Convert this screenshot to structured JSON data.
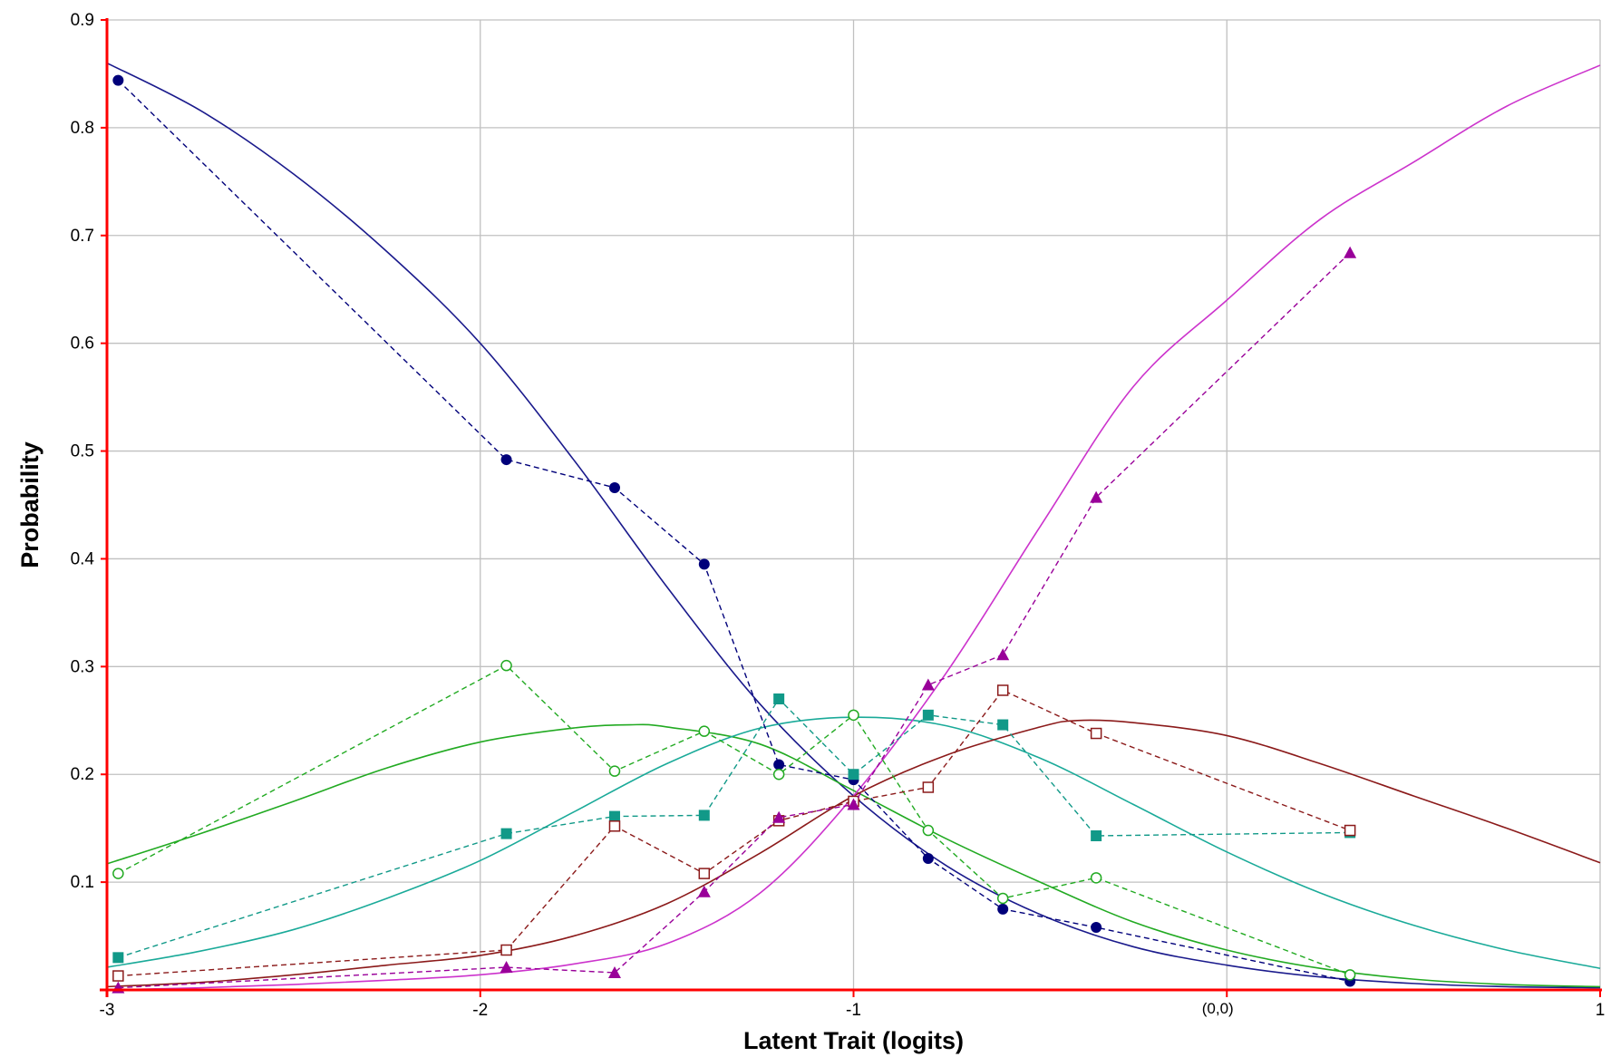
{
  "chart_data": {
    "type": "line",
    "title": "",
    "xlabel": "Latent Trait (logits)",
    "ylabel": "Probability",
    "xlim": [
      -3,
      1
    ],
    "ylim": [
      0,
      0.9
    ],
    "x_ticks": [
      {
        "value": -3,
        "label": "-3"
      },
      {
        "value": -2,
        "label": "-2"
      },
      {
        "value": -1,
        "label": "-1"
      },
      {
        "value": 1,
        "label": "1"
      }
    ],
    "y_ticks": [
      {
        "value": 0.1,
        "label": "0.1"
      },
      {
        "value": 0.2,
        "label": "0.2"
      },
      {
        "value": 0.3,
        "label": "0.3"
      },
      {
        "value": 0.4,
        "label": "0.4"
      },
      {
        "value": 0.5,
        "label": "0.5"
      },
      {
        "value": 0.6,
        "label": "0.6"
      },
      {
        "value": 0.7,
        "label": "0.7"
      },
      {
        "value": 0.8,
        "label": "0.8"
      },
      {
        "value": 0.9,
        "label": "0.9"
      }
    ],
    "origin_label": "(0,0)",
    "origin_x": 0,
    "grid": true,
    "axis_color": "#ff0000",
    "grid_color": "#c0c0c0",
    "model_curves": [
      {
        "id": "cat1",
        "color": "#1a1a8c",
        "points": [
          [
            -3,
            0.86
          ],
          [
            -2.75,
            0.816
          ],
          [
            -2.5,
            0.757
          ],
          [
            -2.25,
            0.685
          ],
          [
            -2,
            0.6
          ],
          [
            -1.75,
            0.492
          ],
          [
            -1.5,
            0.374
          ],
          [
            -1.25,
            0.265
          ],
          [
            -1,
            0.18
          ],
          [
            -0.75,
            0.115
          ],
          [
            -0.5,
            0.07
          ],
          [
            -0.25,
            0.04
          ],
          [
            0,
            0.023
          ],
          [
            0.25,
            0.012
          ],
          [
            0.5,
            0.006
          ],
          [
            0.75,
            0.003
          ],
          [
            1,
            0.002
          ]
        ]
      },
      {
        "id": "cat2",
        "color": "#22aa22",
        "points": [
          [
            -3,
            0.117
          ],
          [
            -2.75,
            0.145
          ],
          [
            -2.5,
            0.175
          ],
          [
            -2.25,
            0.206
          ],
          [
            -2,
            0.23
          ],
          [
            -1.75,
            0.243
          ],
          [
            -1.6,
            0.246
          ],
          [
            -1.5,
            0.244
          ],
          [
            -1.25,
            0.228
          ],
          [
            -1,
            0.185
          ],
          [
            -0.75,
            0.14
          ],
          [
            -0.5,
            0.1
          ],
          [
            -0.25,
            0.063
          ],
          [
            0,
            0.037
          ],
          [
            0.25,
            0.02
          ],
          [
            0.5,
            0.01
          ],
          [
            0.75,
            0.005
          ],
          [
            1,
            0.003
          ]
        ]
      },
      {
        "id": "cat3",
        "color": "#1aaa99",
        "points": [
          [
            -3,
            0.021
          ],
          [
            -2.75,
            0.036
          ],
          [
            -2.5,
            0.056
          ],
          [
            -2.25,
            0.085
          ],
          [
            -2,
            0.12
          ],
          [
            -1.75,
            0.165
          ],
          [
            -1.5,
            0.21
          ],
          [
            -1.25,
            0.243
          ],
          [
            -1,
            0.253
          ],
          [
            -0.75,
            0.245
          ],
          [
            -0.5,
            0.215
          ],
          [
            -0.25,
            0.172
          ],
          [
            0,
            0.128
          ],
          [
            0.25,
            0.09
          ],
          [
            0.5,
            0.06
          ],
          [
            0.75,
            0.037
          ],
          [
            1,
            0.02
          ]
        ]
      },
      {
        "id": "cat4",
        "color": "#8b1a1a",
        "points": [
          [
            -3,
            0.003
          ],
          [
            -2.75,
            0.007
          ],
          [
            -2.5,
            0.014
          ],
          [
            -2.25,
            0.023
          ],
          [
            -2,
            0.032
          ],
          [
            -1.75,
            0.05
          ],
          [
            -1.5,
            0.08
          ],
          [
            -1.25,
            0.127
          ],
          [
            -1,
            0.18
          ],
          [
            -0.75,
            0.218
          ],
          [
            -0.5,
            0.244
          ],
          [
            -0.4,
            0.25
          ],
          [
            -0.25,
            0.248
          ],
          [
            0,
            0.236
          ],
          [
            0.25,
            0.21
          ],
          [
            0.5,
            0.18
          ],
          [
            0.75,
            0.15
          ],
          [
            1,
            0.118
          ]
        ]
      },
      {
        "id": "cat5",
        "color": "#cc33cc",
        "points": [
          [
            -3,
            0.0
          ],
          [
            -2.75,
            0.002
          ],
          [
            -2.5,
            0.005
          ],
          [
            -2.25,
            0.009
          ],
          [
            -2,
            0.014
          ],
          [
            -1.75,
            0.024
          ],
          [
            -1.5,
            0.043
          ],
          [
            -1.25,
            0.09
          ],
          [
            -1,
            0.18
          ],
          [
            -0.75,
            0.295
          ],
          [
            -0.5,
            0.43
          ],
          [
            -0.25,
            0.56
          ],
          [
            0,
            0.64
          ],
          [
            0.25,
            0.715
          ],
          [
            0.5,
            0.768
          ],
          [
            0.75,
            0.82
          ],
          [
            1,
            0.858
          ]
        ]
      }
    ],
    "observed_series": [
      {
        "id": "obs1",
        "color": "#00007a",
        "marker": "filled-circle",
        "x": [
          -2.97,
          -1.93,
          -1.64,
          -1.4,
          -1.2,
          -1.0,
          -0.8,
          -0.6,
          -0.35,
          0.33
        ],
        "values": [
          0.844,
          0.492,
          0.466,
          0.395,
          0.209,
          0.195,
          0.122,
          0.075,
          0.058,
          0.008
        ]
      },
      {
        "id": "obs2",
        "color": "#22aa22",
        "marker": "open-circle",
        "x": [
          -2.97,
          -1.93,
          -1.64,
          -1.4,
          -1.2,
          -1.0,
          -0.8,
          -0.6,
          -0.35,
          0.33
        ],
        "values": [
          0.108,
          0.301,
          0.203,
          0.24,
          0.2,
          0.255,
          0.148,
          0.085,
          0.104,
          0.014
        ]
      },
      {
        "id": "obs3",
        "color": "#119988",
        "marker": "filled-square",
        "x": [
          -2.97,
          -1.93,
          -1.64,
          -1.4,
          -1.2,
          -1.0,
          -0.8,
          -0.6,
          -0.35,
          0.33
        ],
        "values": [
          0.03,
          0.145,
          0.161,
          0.162,
          0.27,
          0.2,
          0.255,
          0.246,
          0.143,
          0.146
        ]
      },
      {
        "id": "obs4",
        "color": "#8b1a1a",
        "marker": "open-square",
        "x": [
          -2.97,
          -1.93,
          -1.64,
          -1.4,
          -1.2,
          -1.0,
          -0.8,
          -0.6,
          -0.35,
          0.33
        ],
        "values": [
          0.013,
          0.037,
          0.152,
          0.108,
          0.157,
          0.175,
          0.188,
          0.278,
          0.238,
          0.148
        ]
      },
      {
        "id": "obs5",
        "color": "#990099",
        "marker": "filled-triangle",
        "x": [
          -2.97,
          -1.93,
          -1.64,
          -1.4,
          -1.2,
          -1.0,
          -0.8,
          -0.6,
          -0.35,
          0.33
        ],
        "values": [
          0.002,
          0.021,
          0.016,
          0.091,
          0.16,
          0.172,
          0.283,
          0.311,
          0.457,
          0.684
        ]
      }
    ]
  }
}
